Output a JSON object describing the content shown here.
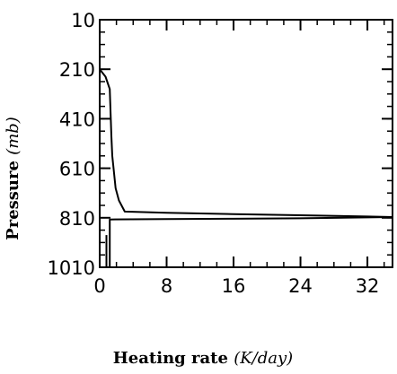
{
  "chart_data": {
    "type": "line",
    "xlabel_text": "Heating rate ",
    "xlabel_unit": "(K/day)",
    "ylabel_text": "Pressure ",
    "ylabel_unit": "(mb)",
    "xlim": [
      0,
      35
    ],
    "ylim": [
      10,
      1010
    ],
    "y_inverted": true,
    "x_ticks": [
      0,
      8,
      16,
      24,
      32
    ],
    "y_ticks": [
      10,
      210,
      410,
      610,
      810,
      1010
    ],
    "x_minor_step": 2,
    "y_minor_step": 50,
    "grid": false,
    "series": [
      {
        "x": [
          0,
          0.7,
          1.2,
          1.4,
          1.5,
          1.9,
          2.3,
          3.0,
          8,
          16,
          24,
          32,
          35
        ],
        "y": [
          210,
          240,
          290,
          480,
          560,
          690,
          740,
          785,
          790,
          795,
          800,
          805,
          807
        ]
      },
      {
        "x": [
          35,
          24,
          16,
          8,
          1.2,
          1.2
        ],
        "y": [
          807,
          812,
          814,
          815,
          817,
          1010
        ]
      },
      {
        "x": [
          0.8,
          0.8
        ],
        "y": [
          880,
          1010
        ]
      }
    ]
  }
}
